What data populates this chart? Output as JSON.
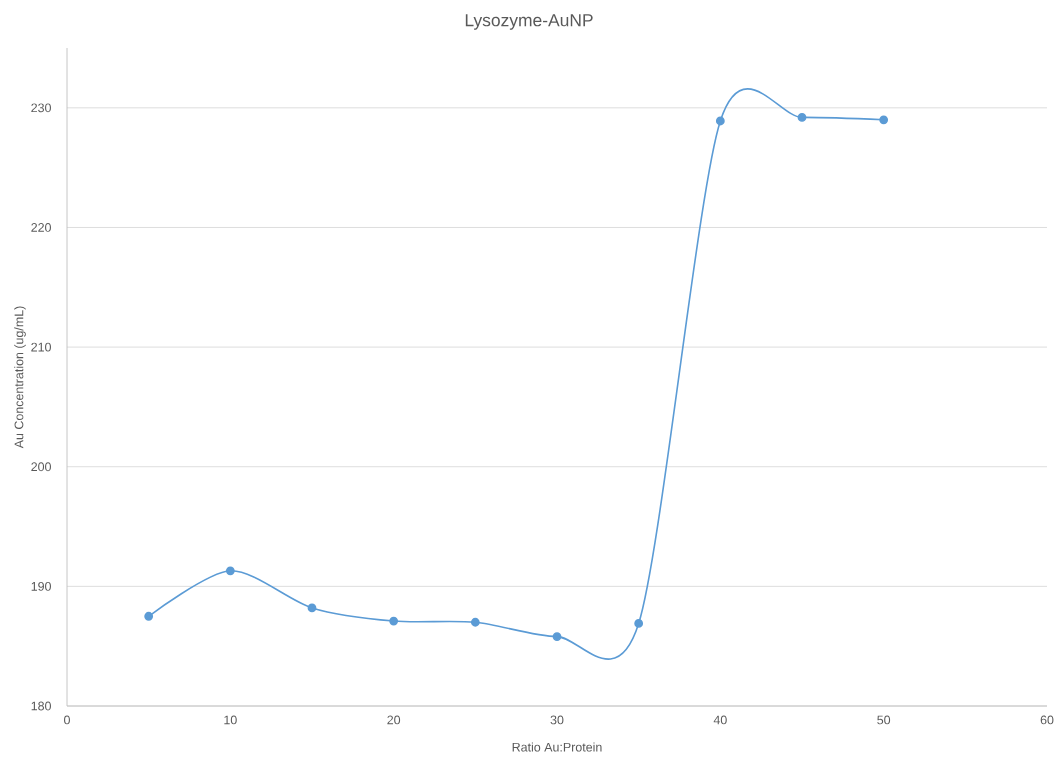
{
  "chart_data": {
    "type": "line",
    "title": "Lysozyme-AuNP",
    "xlabel": "Ratio Au:Protein",
    "ylabel": "Au Concentration (ug/mL)",
    "x": [
      5,
      10,
      15,
      20,
      25,
      30,
      35,
      40,
      45,
      50
    ],
    "series": [
      {
        "color": "#5b9bd5",
        "values": [
          187.5,
          191.3,
          188.2,
          187.1,
          187.0,
          185.8,
          186.9,
          228.9,
          229.2,
          229.0
        ]
      }
    ],
    "xlim": [
      0,
      60
    ],
    "xticks": [
      0,
      10,
      20,
      30,
      40,
      50,
      60
    ],
    "ylim": [
      180,
      235
    ],
    "yticks": [
      180,
      190,
      200,
      210,
      220,
      230
    ],
    "grid": "y",
    "marker": "circle",
    "line_style": "solid"
  }
}
